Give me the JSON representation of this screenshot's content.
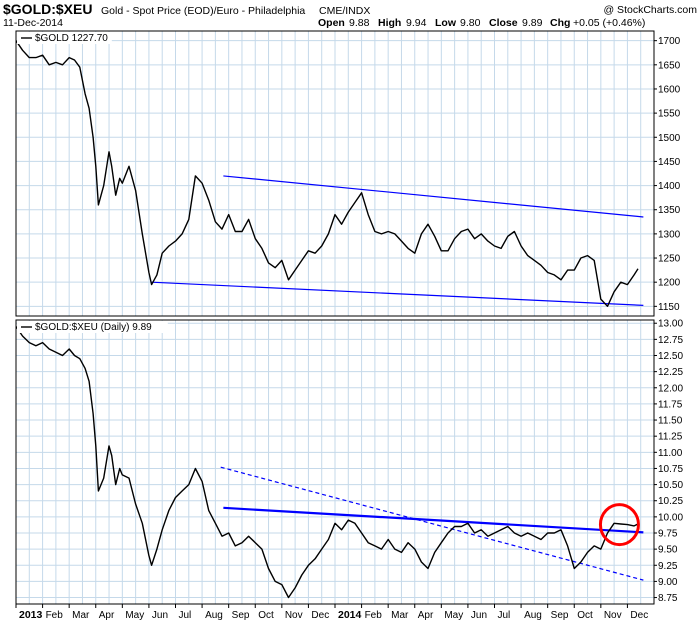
{
  "header": {
    "symbol": "$GOLD:$XEU",
    "description": "Gold - Spot Price (EOD)/Euro - Philadelphia",
    "exchange": "CME/INDX",
    "copyright": "@ StockCharts.com",
    "date": "11-Dec-2014",
    "open_label": "Open",
    "open_value": "9.88",
    "high_label": "High",
    "high_value": "9.94",
    "low_label": "Low",
    "low_value": "9.80",
    "close_label": "Close",
    "close_value": "9.89",
    "chg_label": "Chg",
    "chg_value": "+0.05 (+0.46%)"
  },
  "colors": {
    "background": "#ffffff",
    "grid": "#c5d9ea",
    "price_line": "#000000",
    "trend_line": "#0000ff",
    "highlight_circle": "#ff0000"
  },
  "chart_data": [
    {
      "type": "line",
      "legend": "$GOLD 1227.70",
      "ylim": [
        1130,
        1720
      ],
      "yticks": [
        "1150",
        "1200",
        "1250",
        "1300",
        "1350",
        "1400",
        "1450",
        "1500",
        "1550",
        "1600",
        "1650",
        "1700"
      ],
      "grid": true,
      "x_unit": "months since Jan 2013",
      "x": [
        0,
        0.25,
        0.5,
        0.75,
        1,
        1.25,
        1.5,
        1.75,
        2,
        2.2,
        2.4,
        2.6,
        2.75,
        2.9,
        3,
        3.1,
        3.3,
        3.5,
        3.6,
        3.75,
        3.9,
        4,
        4.25,
        4.5,
        4.75,
        5,
        5.1,
        5.3,
        5.5,
        5.75,
        6,
        6.25,
        6.5,
        6.75,
        7,
        7.25,
        7.5,
        7.75,
        8,
        8.25,
        8.5,
        8.75,
        9,
        9.25,
        9.5,
        9.75,
        10,
        10.25,
        10.5,
        10.75,
        11,
        11.25,
        11.5,
        11.75,
        12,
        12.25,
        12.5,
        12.75,
        13,
        13.25,
        13.5,
        13.75,
        14,
        14.25,
        14.5,
        14.75,
        15,
        15.25,
        15.5,
        15.75,
        16,
        16.25,
        16.5,
        16.75,
        17,
        17.25,
        17.5,
        17.75,
        18,
        18.25,
        18.5,
        18.75,
        19,
        19.25,
        19.5,
        19.75,
        20,
        20.25,
        20.5,
        20.75,
        21,
        21.25,
        21.5,
        21.75,
        22,
        22.25,
        22.5,
        22.75,
        23,
        23.25,
        23.4
      ],
      "values": [
        1700,
        1680,
        1665,
        1665,
        1670,
        1650,
        1655,
        1650,
        1665,
        1660,
        1645,
        1590,
        1560,
        1500,
        1440,
        1360,
        1400,
        1470,
        1440,
        1380,
        1415,
        1405,
        1440,
        1390,
        1300,
        1220,
        1195,
        1215,
        1260,
        1275,
        1285,
        1300,
        1330,
        1420,
        1405,
        1370,
        1325,
        1310,
        1340,
        1305,
        1305,
        1330,
        1290,
        1270,
        1240,
        1230,
        1245,
        1205,
        1225,
        1245,
        1265,
        1260,
        1275,
        1300,
        1340,
        1320,
        1345,
        1365,
        1385,
        1340,
        1305,
        1300,
        1305,
        1300,
        1285,
        1270,
        1260,
        1300,
        1320,
        1295,
        1265,
        1265,
        1290,
        1305,
        1310,
        1290,
        1300,
        1285,
        1275,
        1270,
        1295,
        1305,
        1275,
        1255,
        1245,
        1235,
        1220,
        1215,
        1205,
        1225,
        1225,
        1250,
        1255,
        1245,
        1165,
        1150,
        1180,
        1200,
        1195,
        1215,
        1227.7
      ],
      "trendlines": [
        {
          "x1": 7.8,
          "y1": 1420,
          "x2": 23.6,
          "y2": 1335,
          "style": "solid"
        },
        {
          "x1": 5.1,
          "y1": 1200,
          "x2": 23.6,
          "y2": 1152,
          "style": "solid"
        }
      ]
    },
    {
      "type": "line",
      "legend": "$GOLD:$XEU (Daily) 9.89",
      "ylim": [
        8.65,
        13.05
      ],
      "yticks": [
        "8.75",
        "9.00",
        "9.25",
        "9.50",
        "9.75",
        "10.00",
        "10.25",
        "10.50",
        "10.75",
        "11.00",
        "11.25",
        "11.50",
        "11.75",
        "12.00",
        "12.25",
        "12.50",
        "12.75",
        "13.00"
      ],
      "grid": true,
      "x_unit": "months since Jan 2013",
      "x": [
        0,
        0.25,
        0.5,
        0.75,
        1,
        1.25,
        1.5,
        1.75,
        2,
        2.2,
        2.4,
        2.6,
        2.75,
        2.9,
        3,
        3.1,
        3.3,
        3.5,
        3.6,
        3.75,
        3.9,
        4,
        4.25,
        4.5,
        4.75,
        5,
        5.1,
        5.3,
        5.5,
        5.75,
        6,
        6.25,
        6.5,
        6.75,
        7,
        7.25,
        7.5,
        7.75,
        8,
        8.25,
        8.5,
        8.75,
        9,
        9.25,
        9.5,
        9.75,
        10,
        10.25,
        10.5,
        10.75,
        11,
        11.25,
        11.5,
        11.75,
        12,
        12.25,
        12.5,
        12.75,
        13,
        13.25,
        13.5,
        13.75,
        14,
        14.25,
        14.5,
        14.75,
        15,
        15.25,
        15.5,
        15.75,
        16,
        16.25,
        16.5,
        16.75,
        17,
        17.25,
        17.5,
        17.75,
        18,
        18.25,
        18.5,
        18.75,
        19,
        19.25,
        19.5,
        19.75,
        20,
        20.25,
        20.5,
        20.75,
        21,
        21.25,
        21.5,
        21.75,
        22,
        22.25,
        22.5,
        22.75,
        23,
        23.25,
        23.4
      ],
      "values": [
        12.95,
        12.8,
        12.7,
        12.65,
        12.7,
        12.6,
        12.55,
        12.5,
        12.6,
        12.5,
        12.45,
        12.3,
        12.1,
        11.6,
        11.1,
        10.4,
        10.6,
        11.1,
        10.95,
        10.5,
        10.75,
        10.65,
        10.6,
        10.2,
        9.9,
        9.4,
        9.25,
        9.5,
        9.8,
        10.1,
        10.3,
        10.4,
        10.5,
        10.75,
        10.55,
        10.1,
        9.9,
        9.7,
        9.75,
        9.55,
        9.6,
        9.7,
        9.6,
        9.5,
        9.2,
        9.0,
        8.95,
        8.75,
        8.9,
        9.1,
        9.25,
        9.35,
        9.5,
        9.65,
        9.9,
        9.8,
        9.95,
        9.9,
        9.75,
        9.6,
        9.55,
        9.5,
        9.65,
        9.5,
        9.45,
        9.6,
        9.5,
        9.3,
        9.2,
        9.45,
        9.6,
        9.75,
        9.85,
        9.85,
        9.9,
        9.75,
        9.8,
        9.7,
        9.75,
        9.8,
        9.85,
        9.75,
        9.7,
        9.75,
        9.7,
        9.65,
        9.75,
        9.75,
        9.8,
        9.55,
        9.2,
        9.3,
        9.45,
        9.55,
        9.5,
        9.75,
        9.9,
        9.89,
        9.88,
        9.86,
        9.89
      ],
      "trendlines": [
        {
          "x1": 7.8,
          "y1": 10.14,
          "x2": 23.6,
          "y2": 9.76,
          "style": "solid"
        },
        {
          "x1": 7.7,
          "y1": 10.77,
          "x2": 23.6,
          "y2": 9.02,
          "style": "dashed"
        }
      ],
      "highlight": {
        "x": 22.7,
        "y": 9.88
      }
    }
  ],
  "x_axis": {
    "labels": [
      {
        "m": 0,
        "text": "2013",
        "bold": true
      },
      {
        "m": 1,
        "text": "Feb"
      },
      {
        "m": 2,
        "text": "Mar"
      },
      {
        "m": 3,
        "text": "Apr"
      },
      {
        "m": 4,
        "text": "May"
      },
      {
        "m": 5,
        "text": "Jun"
      },
      {
        "m": 6,
        "text": "Jul"
      },
      {
        "m": 7,
        "text": "Aug"
      },
      {
        "m": 8,
        "text": "Sep"
      },
      {
        "m": 9,
        "text": "Oct"
      },
      {
        "m": 10,
        "text": "Nov"
      },
      {
        "m": 11,
        "text": "Dec"
      },
      {
        "m": 12,
        "text": "2014",
        "bold": true
      },
      {
        "m": 13,
        "text": "Feb"
      },
      {
        "m": 14,
        "text": "Mar"
      },
      {
        "m": 15,
        "text": "Apr"
      },
      {
        "m": 16,
        "text": "May"
      },
      {
        "m": 17,
        "text": "Jun"
      },
      {
        "m": 18,
        "text": "Jul"
      },
      {
        "m": 19,
        "text": "Aug"
      },
      {
        "m": 20,
        "text": "Sep"
      },
      {
        "m": 21,
        "text": "Oct"
      },
      {
        "m": 22,
        "text": "Nov"
      },
      {
        "m": 23,
        "text": "Dec"
      }
    ]
  }
}
